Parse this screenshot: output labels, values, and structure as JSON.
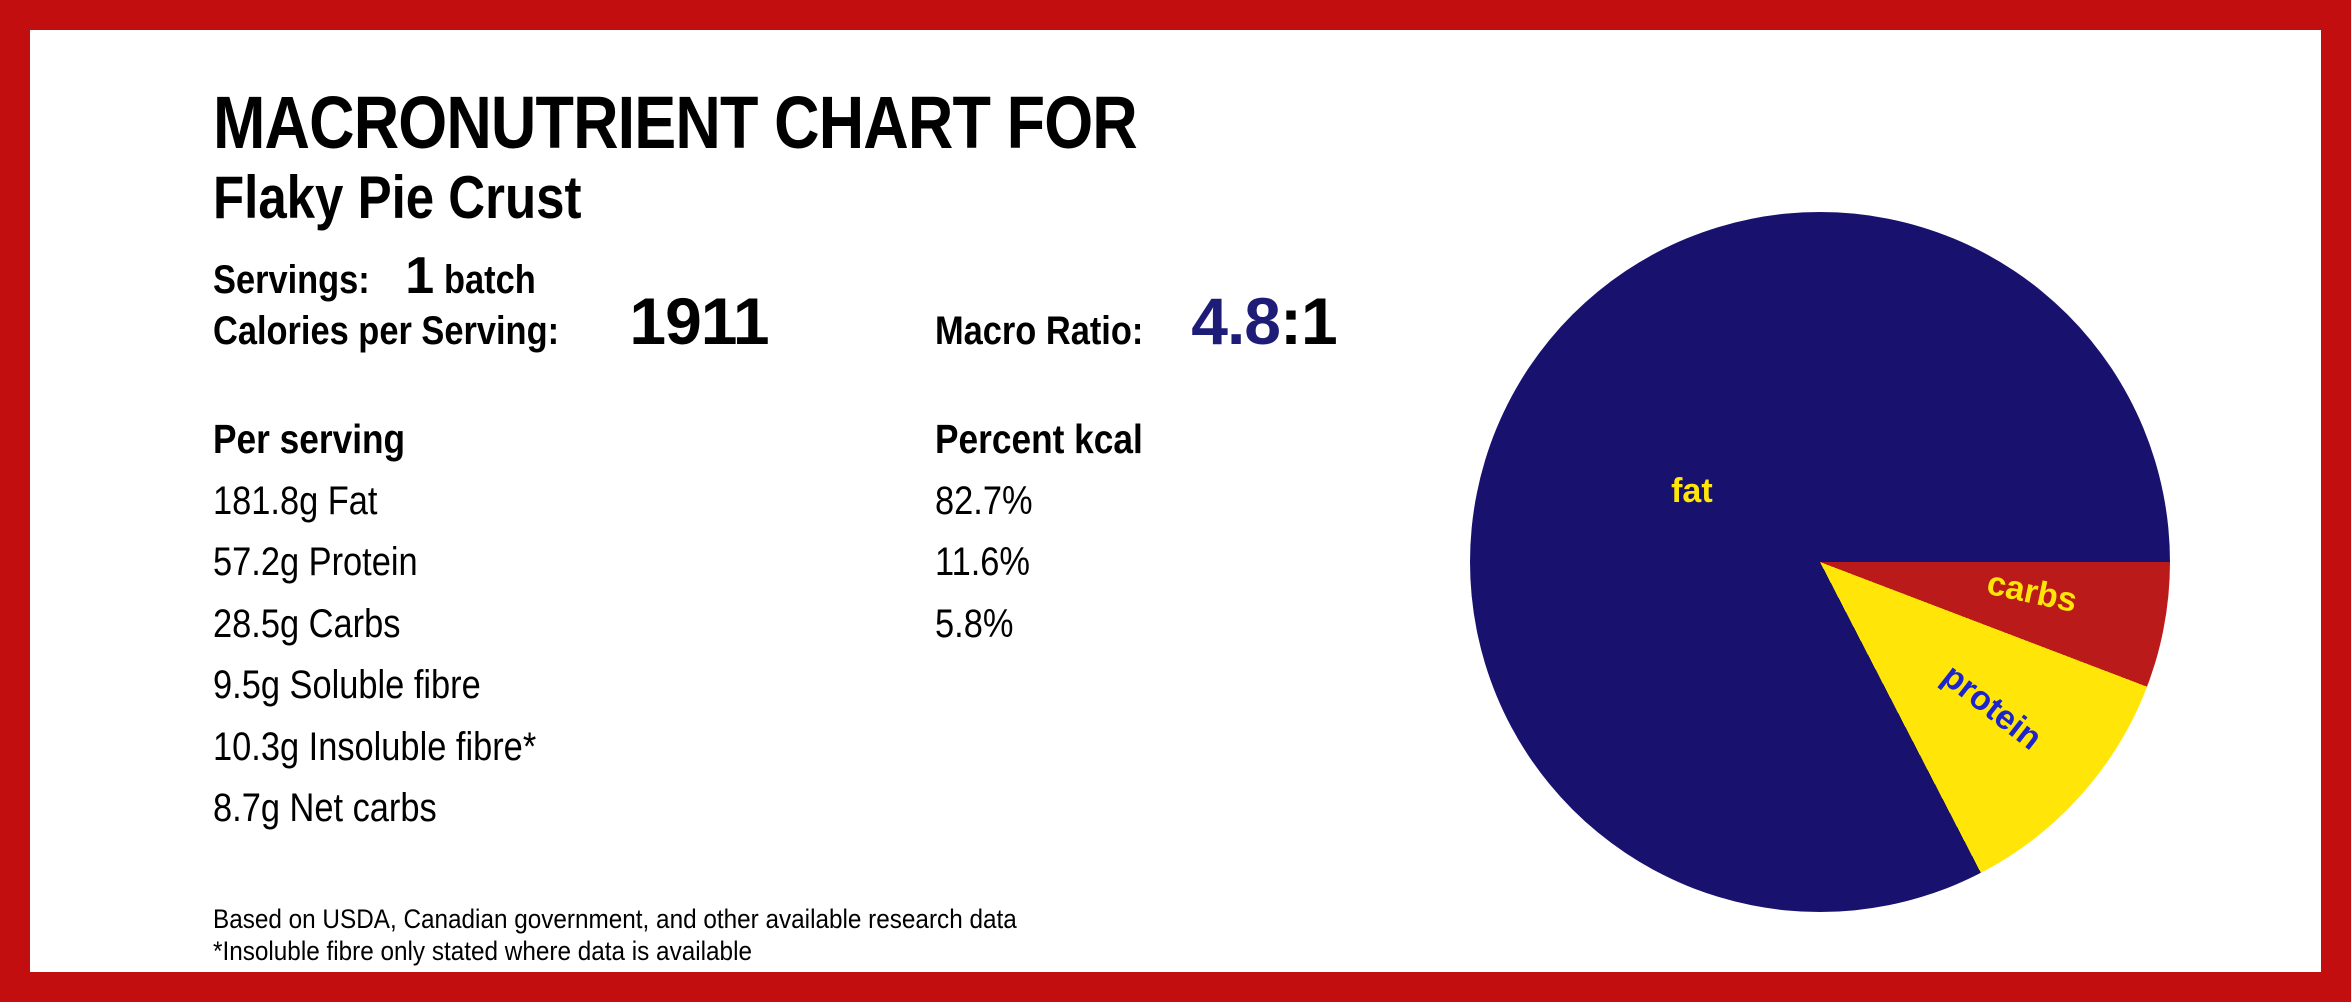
{
  "theme": {
    "border_red": "#c20e0e",
    "navy": "#18126e",
    "accent_navy": "#1d1d78",
    "pie_red": "#bb1a1a",
    "pie_yellow": "#ffe608",
    "label_blue": "#1d24cc",
    "ink": "#000000",
    "paper": "#ffffff"
  },
  "header": {
    "title": "MACRONUTRIENT CHART FOR",
    "subtitle": "Flaky Pie Crust",
    "servings_label": "Servings:",
    "servings_value": "1",
    "servings_unit": "batch",
    "calories_label": "Calories per Serving:",
    "calories_value": "1911",
    "macro_ratio_label": "Macro Ratio:",
    "macro_ratio_value": "4.8",
    "macro_ratio_suffix": ":1"
  },
  "table": {
    "per_serving_header": "Per serving",
    "percent_header": "Percent kcal",
    "rows": [
      {
        "amount": "181.8g Fat",
        "percent": "82.7%"
      },
      {
        "amount": "57.2g Protein",
        "percent": "11.6%"
      },
      {
        "amount": "28.5g Carbs",
        "percent": "5.8%"
      },
      {
        "amount": "9.5g Soluble fibre",
        "percent": ""
      },
      {
        "amount": "10.3g Insoluble fibre*",
        "percent": ""
      },
      {
        "amount": "8.7g Net carbs",
        "percent": ""
      }
    ]
  },
  "footnotes": [
    "Based on USDA, Canadian government, and other available research data",
    "*Insoluble fibre only stated where data is available"
  ],
  "chart_data": {
    "type": "pie",
    "title": "Macronutrient breakdown (percent of kcal)",
    "legend": "none",
    "start_angle_deg": 0,
    "counterclock": true,
    "slices": [
      {
        "label": "fat",
        "value": 82.7,
        "color": "#18126e",
        "label_color": "#ffe608",
        "label_rotation_deg": 0,
        "label_pos": {
          "x_pct": 31.7,
          "y_pct": 39.9
        }
      },
      {
        "label": "protein",
        "value": 11.6,
        "color": "#ffe608",
        "label_color": "#1d24cc",
        "label_rotation_deg": 38,
        "label_pos": {
          "x_pct": 74.6,
          "y_pct": 70.7
        }
      },
      {
        "label": "carbs",
        "value": 5.8,
        "color": "#bb1a1a",
        "label_color": "#ffe608",
        "label_rotation_deg": 12,
        "label_pos": {
          "x_pct": 80.3,
          "y_pct": 54.3
        }
      }
    ]
  }
}
